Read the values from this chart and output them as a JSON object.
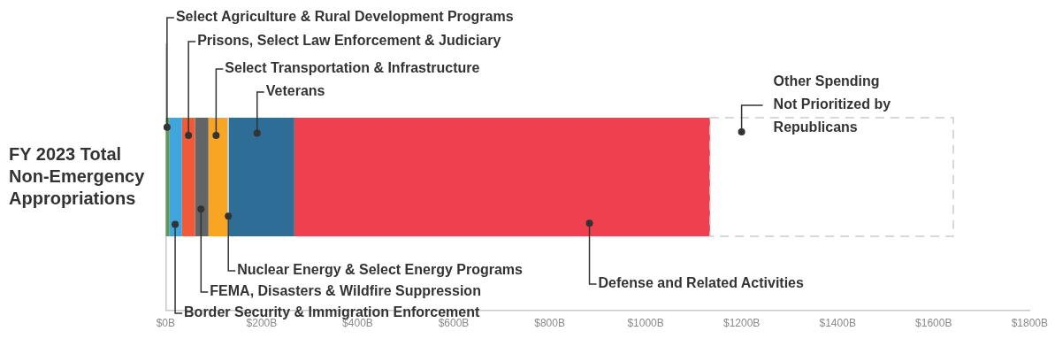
{
  "chart_data": {
    "type": "bar",
    "orientation": "horizontal",
    "stacked": true,
    "legend": false,
    "grid": false,
    "categories": [
      "FY 2023 Total Non-Emergency Appropriations"
    ],
    "xlim": [
      0,
      1800
    ],
    "xticks": [
      {
        "value": 0,
        "label": "$0B"
      },
      {
        "value": 200,
        "label": "$200B"
      },
      {
        "value": 400,
        "label": "$400B"
      },
      {
        "value": 600,
        "label": "$600B"
      },
      {
        "value": 800,
        "label": "$800B"
      },
      {
        "value": 1000,
        "label": "$1000B"
      },
      {
        "value": 1200,
        "label": "$1200B"
      },
      {
        "value": 1400,
        "label": "$1400B"
      },
      {
        "value": 1600,
        "label": "$1600B"
      },
      {
        "value": 1800,
        "label": "$1800B"
      }
    ],
    "series": [
      {
        "name": "Select Agriculture & Rural Development Programs",
        "color": "#5a9a5e",
        "values": [
          8
        ]
      },
      {
        "name": "Border Security & Immigration Enforcement",
        "color": "#41a5dd",
        "values": [
          26
        ]
      },
      {
        "name": "Prisons, Select Law Enforcement & Judiciary",
        "color": "#f05a38",
        "values": [
          27
        ]
      },
      {
        "name": "FEMA, Disasters & Wildfire Suppression",
        "color": "#636466",
        "values": [
          28
        ]
      },
      {
        "name": "Select Transportation & Infrastructure",
        "color": "#f8a523",
        "values": [
          40
        ]
      },
      {
        "name": "Nuclear Energy & Select Energy Programs",
        "color": "#a9d4e6",
        "values": [
          3
        ]
      },
      {
        "name": "Veterans",
        "color": "#2d6d96",
        "values": [
          136
        ]
      },
      {
        "name": "Defense and Related Activities",
        "color": "#ef404f",
        "values": [
          866
        ]
      },
      {
        "name": "Other Spending Not Prioritized by Republicans",
        "color": "#cccccc",
        "line_style": "dashed",
        "values": [
          507
        ]
      }
    ]
  }
}
